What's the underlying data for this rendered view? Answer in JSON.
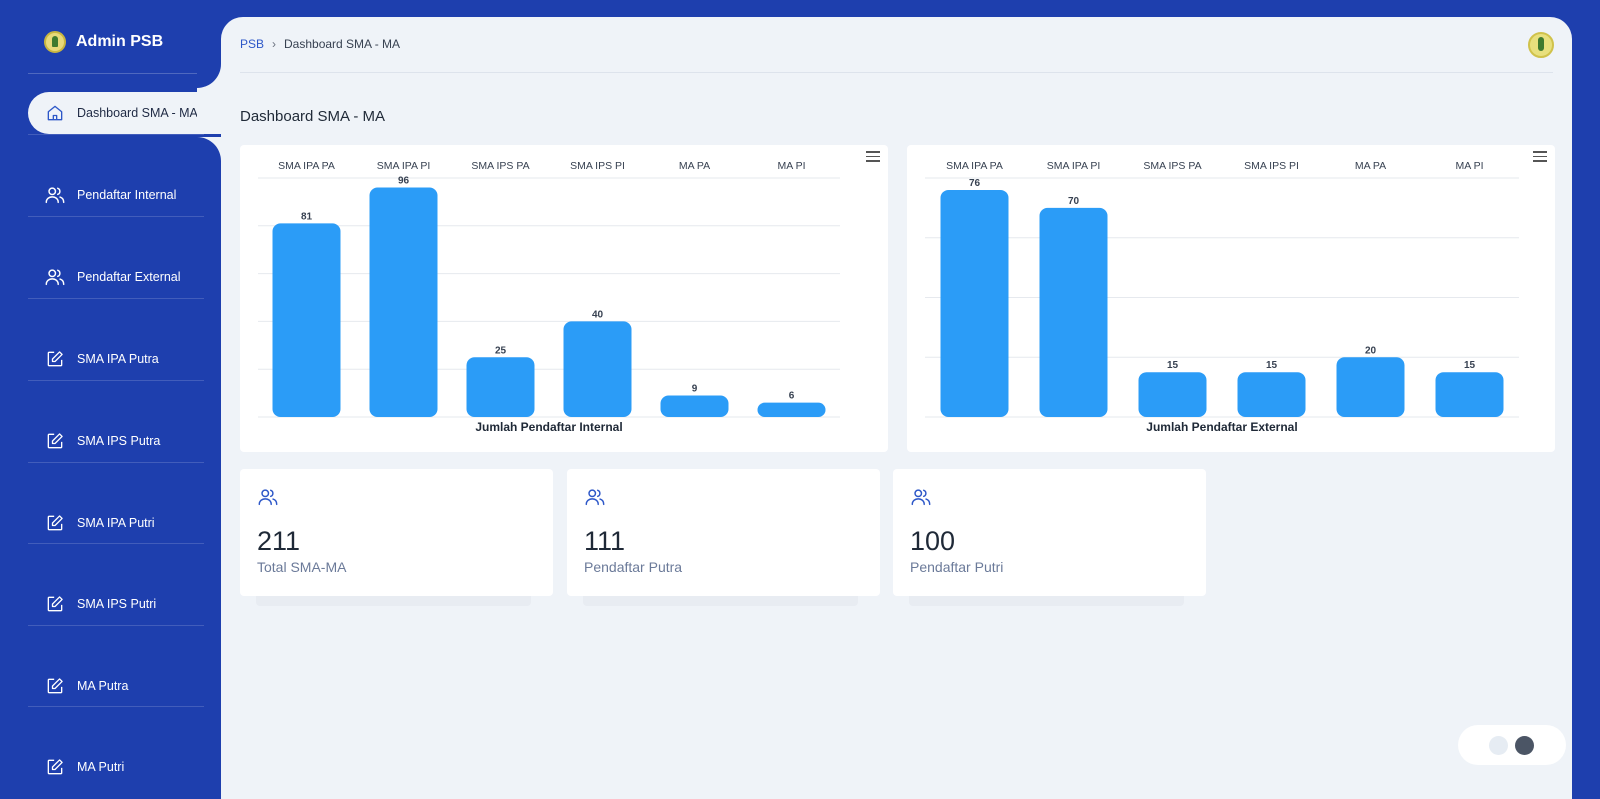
{
  "brand": {
    "name": "Admin PSB"
  },
  "sidebar": {
    "items": [
      {
        "label": "Dashboard SMA - MA",
        "icon": "home-icon",
        "active": true
      },
      {
        "label": "Pendaftar Internal",
        "icon": "users-icon"
      },
      {
        "label": "Pendaftar External",
        "icon": "users-icon"
      },
      {
        "label": "SMA IPA Putra",
        "icon": "edit-icon"
      },
      {
        "label": "SMA IPS Putra",
        "icon": "edit-icon"
      },
      {
        "label": "SMA IPA Putri",
        "icon": "edit-icon"
      },
      {
        "label": "SMA IPS Putri",
        "icon": "edit-icon"
      },
      {
        "label": "MA Putra",
        "icon": "edit-icon"
      },
      {
        "label": "MA Putri",
        "icon": "edit-icon"
      }
    ]
  },
  "breadcrumb": {
    "root": "PSB",
    "separator": "›",
    "current": "Dashboard SMA - MA"
  },
  "page": {
    "title": "Dashboard SMA - MA"
  },
  "chart_data": [
    {
      "type": "bar",
      "categories": [
        "SMA IPA PA",
        "SMA IPA PI",
        "SMA IPS PA",
        "SMA IPS PI",
        "MA PA",
        "MA PI"
      ],
      "values": [
        81,
        96,
        25,
        40,
        9,
        6
      ],
      "title": "Jumlah Pendaftar Internal",
      "ylim": [
        0,
        100
      ],
      "color": "#2b9cf7"
    },
    {
      "type": "bar",
      "categories": [
        "SMA IPA PA",
        "SMA IPA PI",
        "SMA IPS PA",
        "SMA IPS PI",
        "MA PA",
        "MA PI"
      ],
      "values": [
        76,
        70,
        15,
        15,
        20,
        15
      ],
      "title": "Jumlah Pendaftar External",
      "ylim": [
        0,
        80
      ],
      "color": "#2b9cf7"
    }
  ],
  "stats": [
    {
      "value": "211",
      "label": "Total SMA-MA",
      "icon": "users-icon"
    },
    {
      "value": "111",
      "label": "Pendaftar Putra",
      "icon": "users-icon"
    },
    {
      "value": "100",
      "label": "Pendaftar Putri",
      "icon": "users-icon"
    }
  ],
  "colors": {
    "sidebar": "#1e3fae",
    "content": "#eff3f8",
    "bar": "#2b9cf7",
    "accent": "#2d57c8"
  }
}
